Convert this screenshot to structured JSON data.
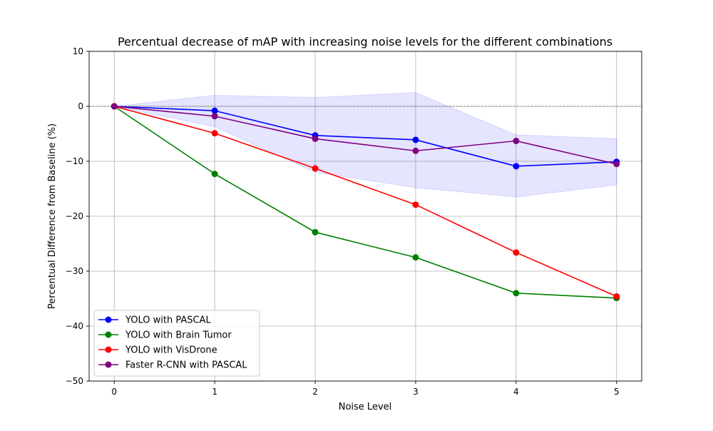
{
  "chart_data": {
    "type": "line",
    "title": "Percentual decrease of mAP with increasing noise levels for the different combinations",
    "xlabel": "Noise Level",
    "ylabel": "Percentual Difference from Baseline (%)",
    "x": [
      0,
      1,
      2,
      3,
      4,
      5
    ],
    "xlim": [
      -0.25,
      5.25
    ],
    "ylim": [
      -50,
      10
    ],
    "xticks": [
      0,
      1,
      2,
      3,
      4,
      5
    ],
    "yticks": [
      10,
      0,
      -10,
      -20,
      -30,
      -40,
      -50
    ],
    "ytick_labels": [
      "10",
      "0",
      "−10",
      "−20",
      "−30",
      "−40",
      "−50"
    ],
    "grid": true,
    "reference_line": 0,
    "legend_position": "lower left",
    "band": {
      "color": "#0000ff",
      "upper": [
        0,
        2.0,
        1.6,
        2.5,
        -5.2,
        -5.9
      ],
      "lower": [
        0,
        -3.7,
        -12.0,
        -14.8,
        -16.5,
        -14.3
      ]
    },
    "series": [
      {
        "name": "YOLO with PASCAL",
        "color": "#0000ff",
        "values": [
          0,
          -0.8,
          -5.3,
          -6.1,
          -10.9,
          -10.1
        ]
      },
      {
        "name": "YOLO with Brain Tumor",
        "color": "#008000",
        "values": [
          0,
          -12.3,
          -22.9,
          -27.5,
          -34.0,
          -34.9
        ]
      },
      {
        "name": "YOLO with VisDrone",
        "color": "#ff0000",
        "values": [
          0,
          -4.9,
          -11.3,
          -17.9,
          -26.6,
          -34.6
        ]
      },
      {
        "name": "Faster R-CNN with PASCAL",
        "color": "#800080",
        "values": [
          0,
          -1.8,
          -5.9,
          -8.1,
          -6.3,
          -10.5
        ]
      }
    ]
  }
}
